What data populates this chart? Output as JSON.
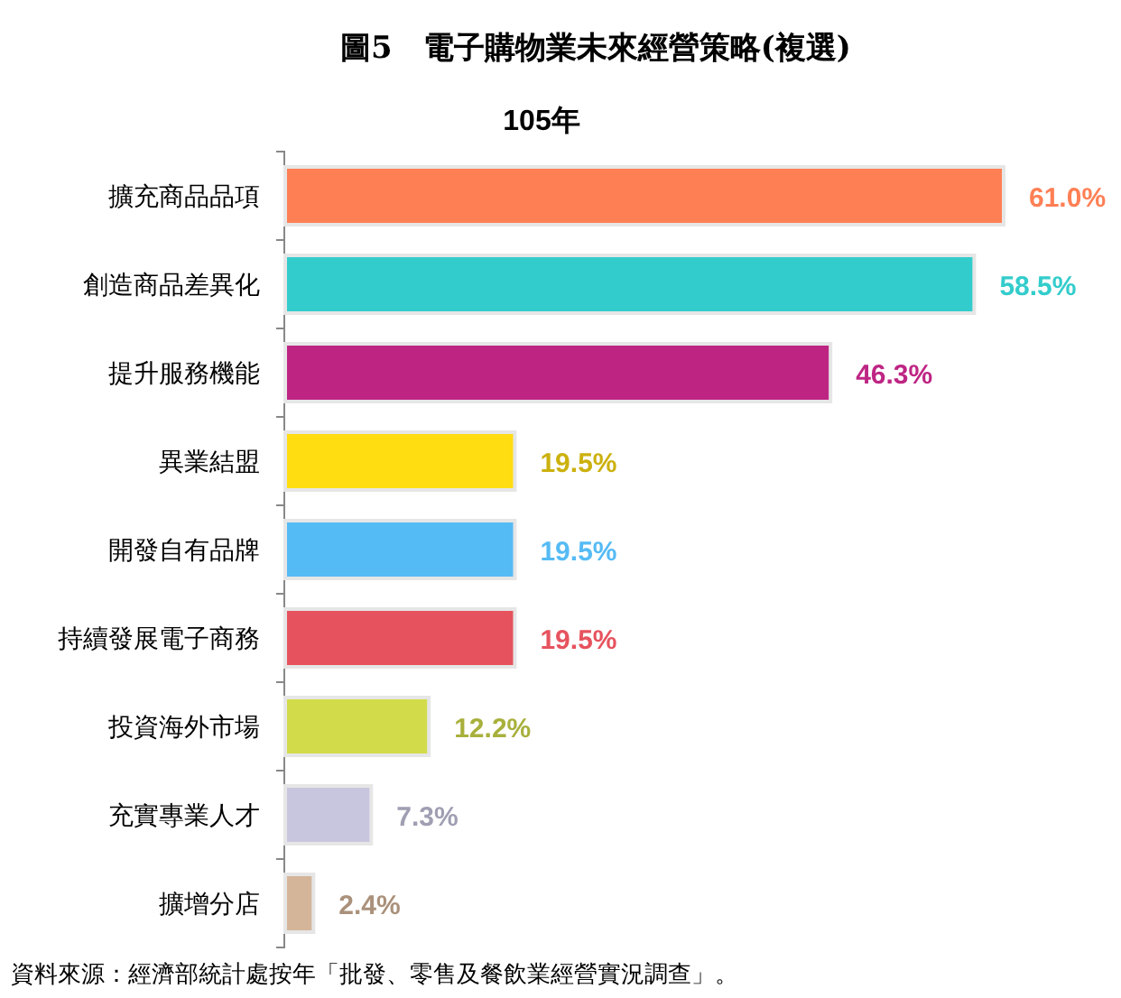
{
  "chart_data": {
    "type": "bar",
    "orientation": "horizontal",
    "title": "圖5　電子購物業未來經營策略(複選)",
    "subtitle": "105年",
    "categories": [
      "擴充商品品項",
      "創造商品差異化",
      "提升服務機能",
      "異業結盟",
      "開發自有品牌",
      "持續發展電子商務",
      "投資海外市場",
      "充實專業人才",
      "擴增分店"
    ],
    "values": [
      61.0,
      58.5,
      46.3,
      19.5,
      19.5,
      19.5,
      12.2,
      7.3,
      2.4
    ],
    "value_labels": [
      "61.0%",
      "58.5%",
      "46.3%",
      "19.5%",
      "19.5%",
      "19.5%",
      "12.2%",
      "7.3%",
      "2.4%"
    ],
    "colors": [
      "#ff7f55",
      "#33cccc",
      "#be2583",
      "#ffdd11",
      "#55bbf5",
      "#e6535e",
      "#d2dc4b",
      "#c8c5df",
      "#d4b59a"
    ],
    "annotations": [
      "資料來源：經濟部統計處按年「批發、零售及餐飲業經營實況調查」。"
    ]
  }
}
